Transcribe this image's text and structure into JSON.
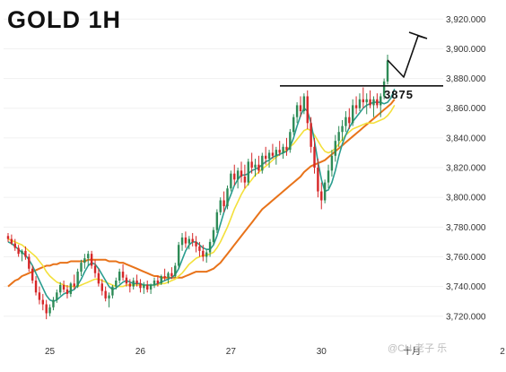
{
  "chart_data": {
    "type": "candlestick",
    "title": "GOLD 1H",
    "y_axis": {
      "position": "right",
      "ticks": [
        3720,
        3740,
        3760,
        3780,
        3800,
        3820,
        3840,
        3860,
        3880,
        3900,
        3920
      ],
      "tick_labels": [
        "3,720.000",
        "3,740.000",
        "3,760.000",
        "3,780.000",
        "3,800.000",
        "3,820.000",
        "3,840.000",
        "3,860.000",
        "3,880.000",
        "3,900.000",
        "3,920.000"
      ],
      "range": [
        3706,
        3928
      ]
    },
    "x_axis": {
      "ticks": [
        {
          "label": "25",
          "bar": 12
        },
        {
          "label": "26",
          "bar": 38
        },
        {
          "label": "27",
          "bar": 64
        },
        {
          "label": "30",
          "bar": 90
        },
        {
          "label": "十月",
          "bar": 116
        },
        {
          "label": "2",
          "bar": 142
        }
      ]
    },
    "up_color": "#2e8b57",
    "down_color": "#d62728",
    "ma_colors": {
      "short": "#2a9d8f",
      "mid": "#f3e03b",
      "long": "#e8731a"
    },
    "key_level": {
      "value": 3875,
      "label": "3875"
    },
    "ohlc": [
      [
        3774,
        3776,
        3770,
        3772
      ],
      [
        3772,
        3775,
        3768,
        3769
      ],
      [
        3769,
        3772,
        3764,
        3766
      ],
      [
        3766,
        3768,
        3760,
        3762
      ],
      [
        3762,
        3765,
        3757,
        3764
      ],
      [
        3764,
        3767,
        3758,
        3760
      ],
      [
        3760,
        3762,
        3750,
        3752
      ],
      [
        3752,
        3754,
        3742,
        3744
      ],
      [
        3744,
        3747,
        3734,
        3736
      ],
      [
        3736,
        3740,
        3728,
        3731
      ],
      [
        3731,
        3735,
        3724,
        3728
      ],
      [
        3728,
        3731,
        3718,
        3722
      ],
      [
        3722,
        3728,
        3720,
        3726
      ],
      [
        3726,
        3733,
        3724,
        3731
      ],
      [
        3731,
        3738,
        3729,
        3736
      ],
      [
        3736,
        3743,
        3734,
        3741
      ],
      [
        3741,
        3744,
        3736,
        3738
      ],
      [
        3738,
        3741,
        3732,
        3735
      ],
      [
        3735,
        3743,
        3733,
        3742
      ],
      [
        3742,
        3748,
        3738,
        3740
      ],
      [
        3740,
        3752,
        3739,
        3750
      ],
      [
        3750,
        3758,
        3747,
        3756
      ],
      [
        3756,
        3762,
        3752,
        3759
      ],
      [
        3759,
        3764,
        3754,
        3762
      ],
      [
        3762,
        3764,
        3752,
        3754
      ],
      [
        3754,
        3758,
        3746,
        3749
      ],
      [
        3749,
        3752,
        3740,
        3742
      ],
      [
        3742,
        3745,
        3734,
        3737
      ],
      [
        3737,
        3740,
        3730,
        3732
      ],
      [
        3732,
        3736,
        3726,
        3734
      ],
      [
        3734,
        3741,
        3732,
        3740
      ],
      [
        3740,
        3746,
        3738,
        3744
      ],
      [
        3744,
        3752,
        3742,
        3750
      ],
      [
        3750,
        3755,
        3744,
        3746
      ],
      [
        3746,
        3748,
        3740,
        3742
      ],
      [
        3742,
        3745,
        3736,
        3740
      ],
      [
        3740,
        3746,
        3738,
        3744
      ],
      [
        3744,
        3748,
        3740,
        3742
      ],
      [
        3742,
        3745,
        3736,
        3739
      ],
      [
        3739,
        3743,
        3735,
        3741
      ],
      [
        3741,
        3744,
        3736,
        3738
      ],
      [
        3738,
        3742,
        3735,
        3741
      ],
      [
        3741,
        3746,
        3739,
        3744
      ],
      [
        3744,
        3747,
        3740,
        3742
      ],
      [
        3742,
        3748,
        3741,
        3747
      ],
      [
        3747,
        3752,
        3744,
        3746
      ],
      [
        3746,
        3750,
        3742,
        3749
      ],
      [
        3749,
        3753,
        3745,
        3747
      ],
      [
        3747,
        3756,
        3746,
        3754
      ],
      [
        3754,
        3770,
        3752,
        3768
      ],
      [
        3768,
        3776,
        3764,
        3773
      ],
      [
        3773,
        3777,
        3766,
        3769
      ],
      [
        3769,
        3774,
        3765,
        3772
      ],
      [
        3772,
        3776,
        3767,
        3770
      ],
      [
        3770,
        3774,
        3763,
        3767
      ],
      [
        3767,
        3770,
        3760,
        3764
      ],
      [
        3764,
        3768,
        3757,
        3760
      ],
      [
        3760,
        3765,
        3756,
        3763
      ],
      [
        3763,
        3772,
        3760,
        3770
      ],
      [
        3770,
        3780,
        3768,
        3778
      ],
      [
        3778,
        3792,
        3776,
        3790
      ],
      [
        3790,
        3800,
        3788,
        3798
      ],
      [
        3798,
        3804,
        3790,
        3794
      ],
      [
        3794,
        3808,
        3792,
        3806
      ],
      [
        3806,
        3818,
        3804,
        3816
      ],
      [
        3816,
        3822,
        3808,
        3812
      ],
      [
        3812,
        3820,
        3806,
        3818
      ],
      [
        3818,
        3824,
        3810,
        3814
      ],
      [
        3814,
        3822,
        3806,
        3810
      ],
      [
        3810,
        3826,
        3808,
        3824
      ],
      [
        3824,
        3830,
        3816,
        3820
      ],
      [
        3820,
        3826,
        3814,
        3822
      ],
      [
        3822,
        3828,
        3816,
        3818
      ],
      [
        3818,
        3830,
        3816,
        3828
      ],
      [
        3828,
        3834,
        3822,
        3826
      ],
      [
        3826,
        3832,
        3820,
        3830
      ],
      [
        3830,
        3836,
        3826,
        3828
      ],
      [
        3828,
        3834,
        3822,
        3832
      ],
      [
        3832,
        3838,
        3828,
        3830
      ],
      [
        3830,
        3836,
        3826,
        3834
      ],
      [
        3834,
        3840,
        3828,
        3832
      ],
      [
        3832,
        3846,
        3830,
        3844
      ],
      [
        3844,
        3856,
        3842,
        3854
      ],
      [
        3854,
        3864,
        3850,
        3862
      ],
      [
        3862,
        3868,
        3854,
        3858
      ],
      [
        3858,
        3870,
        3856,
        3868
      ],
      [
        3868,
        3872,
        3846,
        3850
      ],
      [
        3850,
        3854,
        3830,
        3834
      ],
      [
        3834,
        3840,
        3816,
        3820
      ],
      [
        3820,
        3826,
        3800,
        3804
      ],
      [
        3804,
        3810,
        3792,
        3798
      ],
      [
        3798,
        3812,
        3796,
        3810
      ],
      [
        3810,
        3822,
        3806,
        3818
      ],
      [
        3818,
        3832,
        3814,
        3828
      ],
      [
        3828,
        3842,
        3824,
        3838
      ],
      [
        3838,
        3848,
        3834,
        3844
      ],
      [
        3844,
        3852,
        3838,
        3848
      ],
      [
        3848,
        3858,
        3844,
        3854
      ],
      [
        3854,
        3860,
        3846,
        3850
      ],
      [
        3850,
        3866,
        3848,
        3862
      ],
      [
        3862,
        3868,
        3856,
        3860
      ],
      [
        3860,
        3870,
        3858,
        3866
      ],
      [
        3866,
        3874,
        3860,
        3864
      ],
      [
        3864,
        3870,
        3856,
        3866
      ],
      [
        3866,
        3872,
        3860,
        3862
      ],
      [
        3862,
        3868,
        3854,
        3866
      ],
      [
        3866,
        3870,
        3860,
        3862
      ],
      [
        3862,
        3870,
        3854,
        3868
      ],
      [
        3868,
        3880,
        3866,
        3878
      ],
      [
        3878,
        3896,
        3876,
        3892
      ]
    ],
    "ma_short": [
      3770,
      3769,
      3767,
      3765,
      3763,
      3761,
      3758,
      3754,
      3749,
      3744,
      3739,
      3734,
      3731,
      3730,
      3731,
      3733,
      3735,
      3736,
      3737,
      3738,
      3741,
      3745,
      3750,
      3754,
      3756,
      3755,
      3752,
      3748,
      3744,
      3740,
      3738,
      3739,
      3741,
      3743,
      3744,
      3743,
      3742,
      3742,
      3742,
      3741,
      3741,
      3741,
      3741,
      3742,
      3743,
      3744,
      3745,
      3746,
      3748,
      3752,
      3758,
      3764,
      3768,
      3770,
      3770,
      3768,
      3766,
      3765,
      3765,
      3768,
      3774,
      3782,
      3790,
      3796,
      3802,
      3808,
      3812,
      3815,
      3815,
      3816,
      3818,
      3819,
      3820,
      3822,
      3824,
      3825,
      3827,
      3828,
      3829,
      3830,
      3831,
      3834,
      3840,
      3848,
      3855,
      3860,
      3858,
      3850,
      3838,
      3824,
      3812,
      3804,
      3805,
      3810,
      3818,
      3828,
      3836,
      3842,
      3847,
      3851,
      3854,
      3857,
      3860,
      3862,
      3863,
      3864,
      3864,
      3864,
      3863,
      3864,
      3867,
      3873
    ],
    "ma_mid": [
      3772,
      3771,
      3770,
      3769,
      3768,
      3766,
      3764,
      3762,
      3760,
      3757,
      3754,
      3750,
      3747,
      3745,
      3743,
      3742,
      3741,
      3740,
      3740,
      3740,
      3740,
      3741,
      3742,
      3743,
      3744,
      3745,
      3745,
      3744,
      3743,
      3742,
      3741,
      3740,
      3740,
      3740,
      3741,
      3741,
      3741,
      3741,
      3741,
      3741,
      3741,
      3741,
      3741,
      3741,
      3742,
      3742,
      3743,
      3744,
      3745,
      3747,
      3749,
      3752,
      3755,
      3757,
      3759,
      3760,
      3761,
      3761,
      3762,
      3763,
      3766,
      3770,
      3775,
      3780,
      3786,
      3792,
      3797,
      3802,
      3806,
      3809,
      3812,
      3815,
      3817,
      3819,
      3821,
      3823,
      3825,
      3827,
      3829,
      3830,
      3832,
      3834,
      3836,
      3839,
      3842,
      3845,
      3846,
      3845,
      3842,
      3838,
      3834,
      3831,
      3830,
      3831,
      3833,
      3836,
      3839,
      3842,
      3844,
      3846,
      3847,
      3848,
      3849,
      3850,
      3850,
      3850,
      3851,
      3852,
      3853,
      3855,
      3858,
      3862
    ],
    "ma_long": [
      3740,
      3742,
      3744,
      3745,
      3747,
      3748,
      3749,
      3750,
      3751,
      3752,
      3753,
      3754,
      3754,
      3755,
      3755,
      3756,
      3756,
      3756,
      3757,
      3757,
      3757,
      3757,
      3757,
      3758,
      3758,
      3758,
      3758,
      3758,
      3758,
      3757,
      3757,
      3757,
      3756,
      3756,
      3755,
      3754,
      3753,
      3752,
      3751,
      3750,
      3749,
      3748,
      3747,
      3747,
      3746,
      3746,
      3746,
      3746,
      3746,
      3746,
      3746,
      3747,
      3748,
      3749,
      3750,
      3750,
      3750,
      3750,
      3751,
      3752,
      3754,
      3756,
      3759,
      3762,
      3765,
      3768,
      3771,
      3774,
      3777,
      3780,
      3783,
      3786,
      3789,
      3792,
      3794,
      3796,
      3798,
      3800,
      3802,
      3804,
      3806,
      3808,
      3810,
      3812,
      3814,
      3817,
      3819,
      3821,
      3822,
      3823,
      3824,
      3825,
      3827,
      3829,
      3831,
      3833,
      3835,
      3837,
      3839,
      3841,
      3843,
      3845,
      3847,
      3849,
      3851,
      3853,
      3855,
      3857,
      3859,
      3861,
      3863,
      3866
    ],
    "watermark": "@CH 老子 乐"
  }
}
